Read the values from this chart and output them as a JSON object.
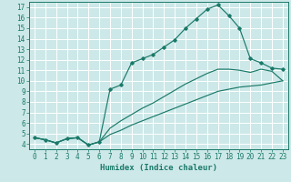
{
  "xlabel": "Humidex (Indice chaleur)",
  "xlim": [
    -0.5,
    23.5
  ],
  "ylim": [
    3.5,
    17.5
  ],
  "xticks": [
    0,
    1,
    2,
    3,
    4,
    5,
    6,
    7,
    8,
    9,
    10,
    11,
    12,
    13,
    14,
    15,
    16,
    17,
    18,
    19,
    20,
    21,
    22,
    23
  ],
  "yticks": [
    4,
    5,
    6,
    7,
    8,
    9,
    10,
    11,
    12,
    13,
    14,
    15,
    16,
    17
  ],
  "bg_color": "#cde8e8",
  "line_color": "#1a7a6a",
  "grid_color": "#b8d8d8",
  "curve1_x": [
    0,
    1,
    2,
    3,
    4,
    5,
    6,
    7,
    8,
    9,
    10,
    11,
    12,
    13,
    14,
    15,
    16,
    17,
    18,
    19,
    20,
    21,
    22,
    23
  ],
  "curve1_y": [
    4.6,
    4.4,
    4.1,
    4.5,
    4.6,
    3.9,
    4.2,
    9.2,
    9.6,
    11.7,
    12.1,
    12.5,
    13.2,
    13.9,
    15.0,
    15.9,
    16.8,
    17.2,
    16.2,
    15.0,
    12.1,
    11.7,
    11.2,
    11.1
  ],
  "curve2_x": [
    0,
    1,
    2,
    3,
    4,
    5,
    6,
    7,
    8,
    9,
    10,
    11,
    12,
    13,
    14,
    15,
    16,
    17,
    18,
    19,
    20,
    21,
    22,
    23
  ],
  "curve2_y": [
    4.6,
    4.4,
    4.1,
    4.5,
    4.6,
    3.9,
    4.2,
    5.5,
    6.2,
    6.8,
    7.4,
    7.9,
    8.5,
    9.1,
    9.7,
    10.2,
    10.7,
    11.1,
    11.1,
    11.0,
    10.8,
    11.1,
    10.9,
    10.0
  ],
  "curve3_x": [
    0,
    1,
    2,
    3,
    4,
    5,
    6,
    7,
    8,
    9,
    10,
    11,
    12,
    13,
    14,
    15,
    16,
    17,
    18,
    19,
    20,
    21,
    22,
    23
  ],
  "curve3_y": [
    4.6,
    4.4,
    4.1,
    4.5,
    4.6,
    3.9,
    4.2,
    4.9,
    5.3,
    5.8,
    6.2,
    6.6,
    7.0,
    7.4,
    7.8,
    8.2,
    8.6,
    9.0,
    9.2,
    9.4,
    9.5,
    9.6,
    9.8,
    10.0
  ],
  "tick_fontsize": 5.5,
  "xlabel_fontsize": 6.5
}
